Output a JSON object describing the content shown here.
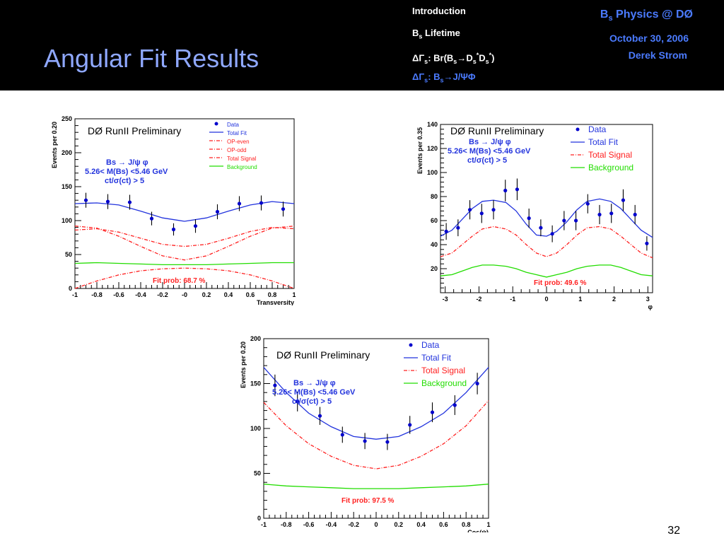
{
  "header": {
    "title": "Angular Fit Results",
    "nav": [
      {
        "label": "Introduction",
        "active": false
      },
      {
        "label": "B_s Lifetime",
        "active": false
      },
      {
        "label": "ΔΓ_s: Br(B_s→D_s*D_s*)",
        "active": false
      },
      {
        "label": "ΔΓ_s: B_s→J/ΨΦ",
        "active": true
      }
    ],
    "brand": "B_s Physics @ DØ",
    "date": "October 30, 2006",
    "author": "Derek Strom"
  },
  "page_number": "32",
  "colors": {
    "data": "#0000cc",
    "total_fit": "#2233dd",
    "signal": "#ff2020",
    "background": "#22dd00",
    "header_accent": "#4b7bff",
    "title": "#8fa8ff"
  },
  "chart_data": [
    {
      "type": "scatter",
      "panel": "transversity",
      "preliminary": "DØ RunII Preliminary",
      "cuts": [
        "Bs → J/ψ φ",
        "5.26< M(Bs) <5.46 GeV",
        "ct/σ(ct) > 5"
      ],
      "xlabel": "Transversity",
      "ylabel": "Events per 0.20",
      "xlim": [
        -1,
        1
      ],
      "ylim": [
        0,
        250
      ],
      "xticks": [
        -1,
        -0.8,
        -0.6,
        -0.4,
        -0.2,
        0,
        0.2,
        0.4,
        0.6,
        0.8,
        1
      ],
      "xtick_labels": [
        "-1",
        "-0.8",
        "-0.6",
        "-0.4",
        "-0.2",
        "-0",
        "0.2",
        "0.4",
        "0.6",
        "0.8",
        "1"
      ],
      "yticks": [
        0,
        50,
        100,
        150,
        200,
        250
      ],
      "legend": [
        {
          "name": "Data",
          "style": "dot",
          "color": "#0000cc"
        },
        {
          "name": "Total Fit",
          "style": "solid",
          "color": "#2233dd"
        },
        {
          "name": "OP-even",
          "style": "dashdot",
          "color": "#ff2020"
        },
        {
          "name": "OP-odd",
          "style": "dashdot",
          "color": "#ff2020"
        },
        {
          "name": "Total Signal",
          "style": "dashdot",
          "color": "#ff2020"
        },
        {
          "name": "Background",
          "style": "solid",
          "color": "#22dd00"
        }
      ],
      "fit_prob": "Fit prob: 68.7 %",
      "data": {
        "x": [
          -0.9,
          -0.7,
          -0.5,
          -0.3,
          -0.1,
          0.1,
          0.3,
          0.5,
          0.7,
          0.9
        ],
        "y": [
          130,
          128,
          127,
          103,
          87,
          92,
          113,
          125,
          126,
          117
        ],
        "err": [
          11,
          11,
          11,
          10,
          9,
          10,
          11,
          11,
          11,
          11
        ]
      },
      "curves": [
        {
          "name": "Total Fit",
          "x": [
            -1,
            -0.8,
            -0.6,
            -0.4,
            -0.2,
            0,
            0.2,
            0.4,
            0.6,
            0.8,
            1
          ],
          "y": [
            125,
            126,
            123,
            114,
            104,
            99,
            104,
            114,
            123,
            128,
            125
          ]
        },
        {
          "name": "Total Signal",
          "x": [
            -1,
            -0.8,
            -0.6,
            -0.4,
            -0.2,
            0,
            0.2,
            0.4,
            0.6,
            0.8,
            1
          ],
          "y": [
            86,
            88,
            83,
            74,
            65,
            62,
            65,
            74,
            84,
            90,
            88
          ]
        },
        {
          "name": "OP-even",
          "x": [
            -1,
            -0.8,
            -0.6,
            -0.4,
            -0.2,
            0,
            0.2,
            0.4,
            0.6,
            0.8,
            1
          ],
          "y": [
            92,
            89,
            77,
            62,
            48,
            42,
            48,
            62,
            77,
            89,
            92
          ]
        },
        {
          "name": "OP-odd",
          "x": [
            -1,
            -0.8,
            -0.6,
            -0.4,
            -0.2,
            0,
            0.2,
            0.4,
            0.6,
            0.8,
            1
          ],
          "y": [
            0,
            11,
            20,
            26,
            29,
            30,
            29,
            26,
            20,
            11,
            0
          ]
        },
        {
          "name": "Background",
          "x": [
            -1,
            -0.8,
            -0.6,
            -0.4,
            -0.2,
            0,
            0.2,
            0.4,
            0.6,
            0.8,
            1
          ],
          "y": [
            37,
            38,
            37,
            36,
            35,
            35,
            35,
            36,
            37,
            38,
            38
          ]
        }
      ]
    },
    {
      "type": "scatter",
      "panel": "phi",
      "preliminary": "DØ RunII Preliminary",
      "cuts": [
        "Bs → J/ψ φ",
        "5.26< M(Bs) <5.46 GeV",
        "ct/σ(ct) > 5"
      ],
      "xlabel": "φ",
      "ylabel": "Events per 0.35",
      "xlim": [
        -3.14,
        3.14
      ],
      "ylim": [
        0,
        140
      ],
      "xticks": [
        -3,
        -2,
        -1,
        0,
        1,
        2,
        3
      ],
      "xtick_labels": [
        "-3",
        "-2",
        "-1",
        "0",
        "1",
        "2",
        "3"
      ],
      "yticks": [
        20,
        40,
        60,
        80,
        100,
        120,
        140
      ],
      "legend": [
        {
          "name": "Data",
          "style": "dot",
          "color": "#0000cc"
        },
        {
          "name": "Total Fit",
          "style": "solid",
          "color": "#2233dd"
        },
        {
          "name": "Total Signal",
          "style": "dashdot",
          "color": "#ff2020"
        },
        {
          "name": "Background",
          "style": "solid",
          "color": "#22dd00"
        }
      ],
      "fit_prob": "Fit prob: 49.6 %",
      "data": {
        "x": [
          -2.97,
          -2.62,
          -2.27,
          -1.92,
          -1.57,
          -1.22,
          -0.87,
          -0.52,
          -0.17,
          0.17,
          0.52,
          0.87,
          1.22,
          1.57,
          1.92,
          2.27,
          2.62,
          2.97
        ],
        "y": [
          51,
          54,
          69,
          66,
          69,
          85,
          86,
          62,
          54,
          49,
          60,
          60,
          74,
          65,
          66,
          77,
          65,
          41
        ],
        "err": [
          7,
          7,
          8,
          8,
          8,
          9,
          9,
          8,
          7,
          7,
          8,
          8,
          8,
          8,
          8,
          9,
          8,
          6
        ]
      },
      "curves": [
        {
          "name": "Total Fit",
          "x": [
            -3.14,
            -2.8,
            -2.5,
            -2.2,
            -1.9,
            -1.57,
            -1.2,
            -0.9,
            -0.6,
            -0.3,
            0,
            0.3,
            0.6,
            0.9,
            1.2,
            1.57,
            1.9,
            2.2,
            2.5,
            2.8,
            3.14
          ],
          "y": [
            47,
            52,
            61,
            70,
            76,
            77,
            75,
            68,
            57,
            48,
            47,
            51,
            59,
            69,
            76,
            78,
            76,
            70,
            61,
            52,
            46
          ]
        },
        {
          "name": "Total Signal",
          "x": [
            -3.14,
            -2.8,
            -2.5,
            -2.2,
            -1.9,
            -1.57,
            -1.2,
            -0.9,
            -0.6,
            -0.3,
            0,
            0.3,
            0.6,
            0.9,
            1.2,
            1.57,
            1.9,
            2.2,
            2.5,
            2.8,
            3.14
          ],
          "y": [
            30,
            33,
            40,
            47,
            53,
            55,
            53,
            48,
            40,
            33,
            30,
            33,
            40,
            48,
            54,
            55,
            53,
            47,
            40,
            33,
            29
          ]
        },
        {
          "name": "Background",
          "x": [
            -3.14,
            -2.8,
            -2.5,
            -2.2,
            -1.9,
            -1.57,
            -1.2,
            -0.9,
            -0.6,
            -0.3,
            0,
            0.3,
            0.6,
            0.9,
            1.2,
            1.57,
            1.9,
            2.2,
            2.5,
            2.8,
            3.14
          ],
          "y": [
            14,
            15,
            18,
            21,
            23,
            23,
            22,
            20,
            17,
            15,
            13,
            15,
            17,
            20,
            22,
            23,
            23,
            21,
            18,
            15,
            14
          ]
        }
      ]
    },
    {
      "type": "scatter",
      "panel": "cos-psi",
      "preliminary": "DØ RunII Preliminary",
      "cuts": [
        "Bs → J/ψ φ",
        "5.26< M(Bs) <5.46 GeV",
        "ct/σ(ct) > 5"
      ],
      "xlabel": "Cos(ψ)",
      "ylabel": "Events per 0.20",
      "xlim": [
        -1,
        1
      ],
      "ylim": [
        0,
        200
      ],
      "xticks": [
        -1,
        -0.8,
        -0.6,
        -0.4,
        -0.2,
        0,
        0.2,
        0.4,
        0.6,
        0.8,
        1
      ],
      "xtick_labels": [
        "-1",
        "-0.8",
        "-0.6",
        "-0.4",
        "-0.2",
        "0",
        "0.2",
        "0.4",
        "0.6",
        "0.8",
        "1"
      ],
      "yticks": [
        0,
        50,
        100,
        150,
        200
      ],
      "legend": [
        {
          "name": "Data",
          "style": "dot",
          "color": "#0000cc"
        },
        {
          "name": "Total Fit",
          "style": "solid",
          "color": "#2233dd"
        },
        {
          "name": "Total Signal",
          "style": "dashdot",
          "color": "#ff2020"
        },
        {
          "name": "Background",
          "style": "solid",
          "color": "#22dd00"
        }
      ],
      "fit_prob": "Fit prob: 97.5 %",
      "data": {
        "x": [
          -0.9,
          -0.7,
          -0.5,
          -0.3,
          -0.1,
          0.1,
          0.3,
          0.5,
          0.7,
          0.9
        ],
        "y": [
          148,
          130,
          114,
          93,
          86,
          85,
          104,
          118,
          126,
          150
        ],
        "err": [
          12,
          11,
          10,
          9,
          9,
          9,
          10,
          11,
          11,
          12
        ]
      },
      "curves": [
        {
          "name": "Total Fit",
          "x": [
            -1,
            -0.8,
            -0.6,
            -0.4,
            -0.2,
            0,
            0.2,
            0.4,
            0.6,
            0.8,
            1
          ],
          "y": [
            168,
            140,
            117,
            102,
            91,
            88,
            91,
            102,
            117,
            140,
            168
          ]
        },
        {
          "name": "Total Signal",
          "x": [
            -1,
            -0.8,
            -0.6,
            -0.4,
            -0.2,
            0,
            0.2,
            0.4,
            0.6,
            0.8,
            1
          ],
          "y": [
            129,
            103,
            83,
            69,
            59,
            55,
            59,
            69,
            83,
            103,
            131
          ]
        },
        {
          "name": "Background",
          "x": [
            -1,
            -0.8,
            -0.6,
            -0.4,
            -0.2,
            0,
            0.2,
            0.4,
            0.6,
            0.8,
            1
          ],
          "y": [
            38,
            36,
            35,
            34,
            33,
            33,
            33,
            34,
            35,
            36,
            38
          ]
        }
      ]
    }
  ]
}
